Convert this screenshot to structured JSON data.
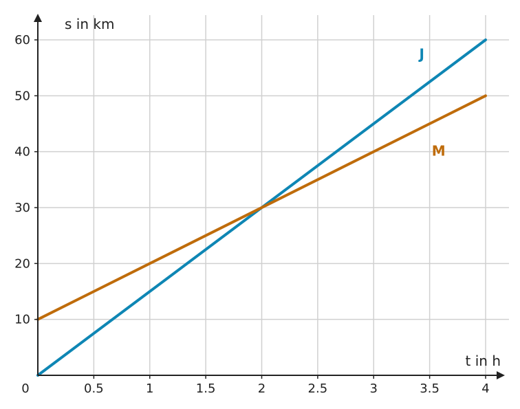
{
  "chart_data": {
    "type": "line",
    "xlabel": "t in h",
    "ylabel": "s in km",
    "xlim": [
      0,
      4
    ],
    "ylim": [
      0,
      60
    ],
    "grid": true,
    "origin_label": "0",
    "x_ticks": [
      0.5,
      1,
      1.5,
      2,
      2.5,
      3,
      3.5,
      4
    ],
    "x_tick_labels": [
      "0.5",
      "1",
      "1.5",
      "2",
      "2.5",
      "3",
      "3.5",
      "4"
    ],
    "y_ticks": [
      10,
      20,
      30,
      40,
      50,
      60
    ],
    "y_tick_labels": [
      "10",
      "20",
      "30",
      "40",
      "50",
      "60"
    ],
    "series": [
      {
        "name": "J",
        "color": "#0e86b4",
        "points": [
          [
            0,
            0
          ],
          [
            4,
            60
          ]
        ]
      },
      {
        "name": "M",
        "color": "#bf6c0b",
        "points": [
          [
            0,
            10
          ],
          [
            4,
            50
          ]
        ]
      }
    ]
  }
}
